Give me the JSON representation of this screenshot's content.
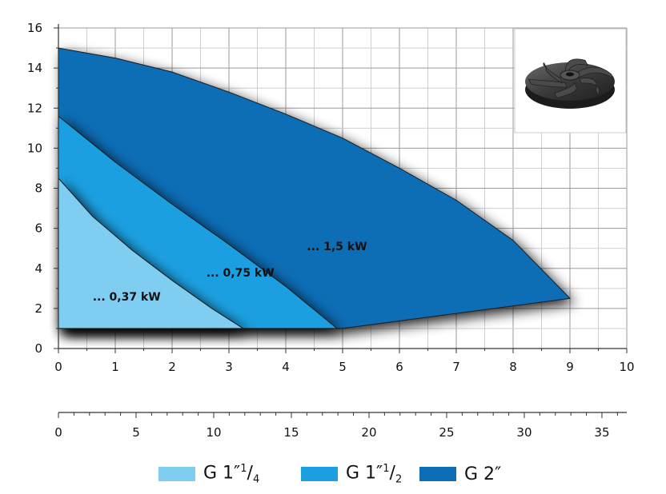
{
  "chart_data": {
    "type": "area",
    "x_axis_primary": {
      "range": [
        0,
        10
      ],
      "ticks": [
        0,
        1,
        2,
        3,
        4,
        5,
        6,
        7,
        8,
        9,
        10
      ],
      "tick_labels": [
        "0",
        "1",
        "2",
        "3",
        "4",
        "5",
        "6",
        "7",
        "8",
        "9",
        "10"
      ]
    },
    "x_axis_secondary": {
      "range": [
        0,
        36.6
      ],
      "ticks": [
        0,
        5,
        10,
        15,
        20,
        25,
        30,
        35
      ],
      "tick_labels": [
        "0",
        "5",
        "10",
        "15",
        "20",
        "25",
        "30",
        "35"
      ]
    },
    "y_axis": {
      "range": [
        0,
        16
      ],
      "ticks": [
        0,
        2,
        4,
        6,
        8,
        10,
        12,
        14,
        16
      ],
      "tick_labels": [
        "0",
        "2",
        "4",
        "6",
        "8",
        "10",
        "12",
        "14",
        "16"
      ]
    },
    "grid": true,
    "series": [
      {
        "name": "G 1″¹/₄",
        "label": "... 0,37 kW",
        "color": "#7fcdf0",
        "points": [
          [
            0,
            8.5
          ],
          [
            0.6,
            6.6
          ],
          [
            1.3,
            4.9
          ],
          [
            2.0,
            3.4
          ],
          [
            2.7,
            2.0
          ],
          [
            3.25,
            1.0
          ],
          [
            0,
            1.0
          ]
        ],
        "label_at": [
          1.2,
          2.4
        ]
      },
      {
        "name": "G 1″¹/₂",
        "label": "... 0,75 kW",
        "color": "#1c9fe0",
        "points": [
          [
            0,
            11.6
          ],
          [
            1.0,
            9.3
          ],
          [
            2.0,
            7.2
          ],
          [
            3.0,
            5.2
          ],
          [
            4.0,
            3.1
          ],
          [
            4.9,
            1.0
          ],
          [
            0,
            1.0
          ]
        ],
        "label_at": [
          3.2,
          3.6
        ]
      },
      {
        "name": "G 2″",
        "label": "... 1,5 kW",
        "color": "#0d6db5",
        "points": [
          [
            0,
            15.0
          ],
          [
            1,
            14.5
          ],
          [
            2,
            13.8
          ],
          [
            3,
            12.8
          ],
          [
            4,
            11.7
          ],
          [
            5,
            10.5
          ],
          [
            6,
            9.0
          ],
          [
            7,
            7.4
          ],
          [
            8,
            5.4
          ],
          [
            9,
            2.5
          ],
          [
            5.0,
            1.0
          ],
          [
            0,
            1.0
          ]
        ],
        "label_at": [
          4.9,
          4.9
        ]
      }
    ],
    "inset": "impeller-image"
  },
  "legend": [
    {
      "icon": "swatch",
      "color": "#7fcdf0",
      "main": "G 1″",
      "sup": "1",
      "sub": "4"
    },
    {
      "icon": "swatch",
      "color": "#1c9fe0",
      "main": "G 1″",
      "sup": "1",
      "sub": "2"
    },
    {
      "icon": "swatch",
      "color": "#0d6db5",
      "main": "G 2″",
      "sup": "",
      "sub": ""
    }
  ]
}
